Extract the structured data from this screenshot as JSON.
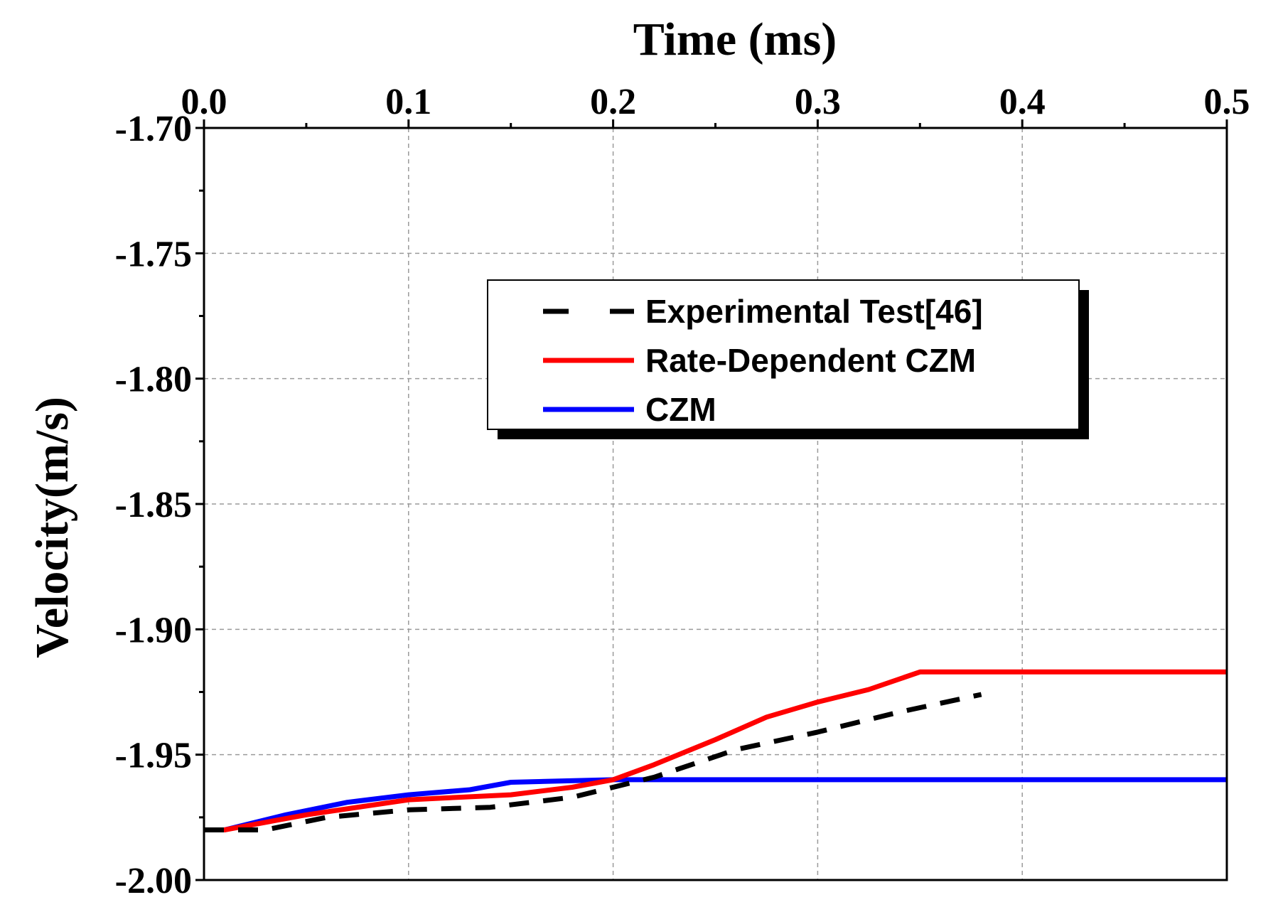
{
  "chart_data": {
    "type": "line",
    "xlabel": "Time (ms)",
    "ylabel": "Velocity(m/s)",
    "xlim": [
      0,
      0.5
    ],
    "ylim": [
      -2.0,
      -1.7
    ],
    "x_ticks": [
      "0.0",
      "0.1",
      "0.2",
      "0.3",
      "0.4",
      "0.5"
    ],
    "y_ticks": [
      "-2.00",
      "-1.95",
      "-1.90",
      "-1.85",
      "-1.80",
      "-1.75",
      "-1.70"
    ],
    "x_tick_values": [
      0,
      0.1,
      0.2,
      0.3,
      0.4,
      0.5
    ],
    "y_tick_values": [
      -2.0,
      -1.95,
      -1.9,
      -1.85,
      -1.8,
      -1.75,
      -1.7
    ],
    "x_axis_position": "top",
    "grid": true,
    "legend_position": "upper-center-right",
    "series": [
      {
        "name": "Experimental Test[46]",
        "color": "#000000",
        "style": "dashed",
        "x": [
          0.0,
          0.03,
          0.06,
          0.1,
          0.14,
          0.18,
          0.22,
          0.26,
          0.3,
          0.34,
          0.38
        ],
        "y": [
          -1.98,
          -1.98,
          -1.975,
          -1.972,
          -1.971,
          -1.967,
          -1.959,
          -1.948,
          -1.941,
          -1.933,
          -1.926
        ]
      },
      {
        "name": "Rate-Dependent CZM",
        "color": "#ff0000",
        "style": "solid",
        "x": [
          0.0,
          0.01,
          0.05,
          0.1,
          0.15,
          0.18,
          0.2,
          0.22,
          0.25,
          0.275,
          0.3,
          0.325,
          0.35,
          0.5
        ],
        "y": [
          -1.98,
          -1.98,
          -1.974,
          -1.968,
          -1.966,
          -1.963,
          -1.96,
          -1.954,
          -1.944,
          -1.935,
          -1.929,
          -1.924,
          -1.917,
          -1.917
        ]
      },
      {
        "name": "CZM",
        "color": "#0000ff",
        "style": "solid",
        "x": [
          0.0,
          0.01,
          0.04,
          0.07,
          0.1,
          0.13,
          0.15,
          0.2,
          0.5
        ],
        "y": [
          -1.98,
          -1.98,
          -1.974,
          -1.969,
          -1.966,
          -1.964,
          -1.961,
          -1.96,
          -1.96
        ]
      }
    ]
  }
}
